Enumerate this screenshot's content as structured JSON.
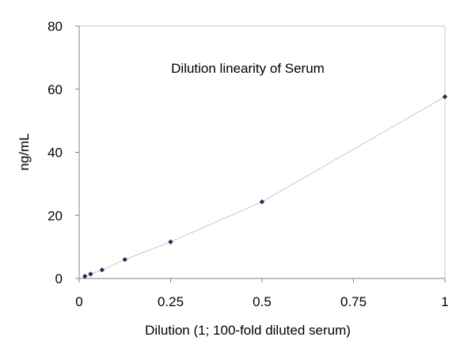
{
  "chart_data": {
    "type": "scatter",
    "title": "Dilution linearity of Serum",
    "xlabel": "Dilution (1; 100-fold diluted serum)",
    "ylabel": "ng/mL",
    "xlim": [
      0,
      1
    ],
    "ylim": [
      0,
      80
    ],
    "x_ticks": [
      0,
      0.25,
      0.5,
      0.75,
      1
    ],
    "x_tick_labels": [
      "0",
      "0.25",
      "0.5",
      "0.75",
      "1"
    ],
    "y_ticks": [
      0,
      20,
      40,
      60,
      80
    ],
    "y_tick_labels": [
      "0",
      "20",
      "40",
      "60",
      "80"
    ],
    "grid": false,
    "legend": "none",
    "series": [
      {
        "x": [
          0.015625,
          0.03125,
          0.0625,
          0.125,
          0.25,
          0.5,
          1
        ],
        "y": [
          0.7,
          1.4,
          2.7,
          6.0,
          11.6,
          24.3,
          57.6
        ],
        "marker": "diamond",
        "marker_color": "#1f2d5c",
        "line_color": "#c8c8c8"
      }
    ],
    "colors": {
      "axis": "#808080",
      "frame": "#c8c8c8",
      "marker": "#1f2d5c",
      "line": "#c8c8c8"
    }
  }
}
